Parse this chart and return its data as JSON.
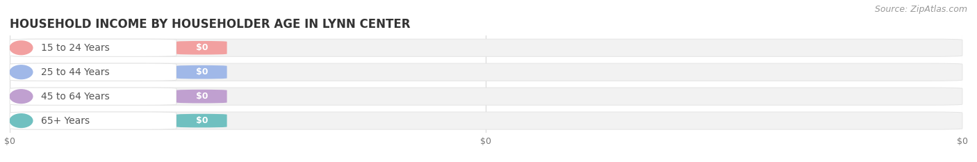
{
  "title": "HOUSEHOLD INCOME BY HOUSEHOLDER AGE IN LYNN CENTER",
  "source": "Source: ZipAtlas.com",
  "categories": [
    "15 to 24 Years",
    "25 to 44 Years",
    "45 to 64 Years",
    "65+ Years"
  ],
  "values": [
    0,
    0,
    0,
    0
  ],
  "bar_colors": [
    "#f2a0a0",
    "#a0b8e8",
    "#c0a0d0",
    "#70c0c0"
  ],
  "background_color": "#ffffff",
  "bar_bg_color": "#f2f2f2",
  "bar_bg_edge": "#e4e4e4",
  "xlim": [
    0,
    1
  ],
  "title_fontsize": 12,
  "source_fontsize": 9,
  "label_fontsize": 10,
  "value_fontsize": 9,
  "tick_fontsize": 9,
  "x_tick_labels": [
    "$0",
    "$0",
    "$0"
  ],
  "x_tick_positions": [
    0.0,
    0.5,
    1.0
  ],
  "grid_color": "#d8d8d8",
  "label_text_color": "#555555",
  "tick_color": "#777777",
  "source_color": "#999999"
}
